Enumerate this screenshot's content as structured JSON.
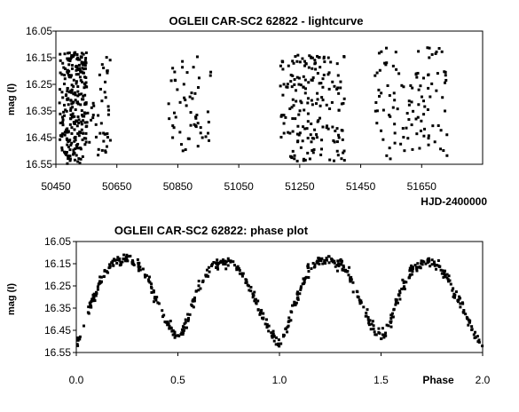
{
  "chart_data": [
    {
      "type": "scatter",
      "title": "OGLEII CAR-SC2 62822 - lightcurve",
      "xlabel": "HJD-2400000",
      "ylabel": "mag (I)",
      "xlim": [
        50450,
        51850
      ],
      "ylim": [
        16.55,
        16.05
      ],
      "y_inverted": true,
      "x_ticks": [
        "50450",
        "50650",
        "50850",
        "51050",
        "51250",
        "51450",
        "51650"
      ],
      "y_ticks": [
        "16.05",
        "16.15",
        "16.25",
        "16.35",
        "16.45",
        "16.55"
      ],
      "grid": false,
      "series": [
        {
          "marker_color": "#000000",
          "observing_seasons": [
            {
              "x_range": [
                50462,
                50550
              ],
              "y_range": [
                16.13,
                16.55
              ],
              "count": 260
            },
            {
              "x_range": [
                50550,
                50630
              ],
              "y_range": [
                16.14,
                16.52
              ],
              "count": 45
            },
            {
              "x_range": [
                50820,
                50965
              ],
              "y_range": [
                16.14,
                16.5
              ],
              "count": 55
            },
            {
              "x_range": [
                51185,
                51400
              ],
              "y_range": [
                16.14,
                16.54
              ],
              "count": 190
            },
            {
              "x_range": [
                51490,
                51735
              ],
              "y_range": [
                16.11,
                16.53
              ],
              "count": 110
            }
          ]
        }
      ]
    },
    {
      "type": "scatter",
      "title": "OGLEII CAR-SC2 62822: phase plot",
      "xlabel": "Phase",
      "ylabel": "mag (I)",
      "xlim": [
        0.0,
        2.0
      ],
      "ylim": [
        16.55,
        16.05
      ],
      "y_inverted": true,
      "x_ticks": [
        "0.0",
        "0.5",
        "1.0",
        "1.5",
        "2.0"
      ],
      "y_ticks": [
        "16.05",
        "16.15",
        "16.25",
        "16.35",
        "16.45",
        "16.55"
      ],
      "grid": false,
      "series": [
        {
          "marker_color": "#000000",
          "light_curve_nodes": {
            "phase": [
              0.0,
              0.03,
              0.08,
              0.14,
              0.2,
              0.25,
              0.3,
              0.35,
              0.4,
              0.45,
              0.48,
              0.5,
              0.52,
              0.55,
              0.6,
              0.66,
              0.72,
              0.77,
              0.82,
              0.87,
              0.92,
              0.96,
              1.0
            ],
            "mag": [
              16.52,
              16.45,
              16.31,
              16.19,
              16.14,
              16.13,
              16.15,
              16.22,
              16.32,
              16.42,
              16.46,
              16.47,
              16.46,
              16.4,
              16.26,
              16.17,
              16.14,
              16.15,
              16.2,
              16.29,
              16.39,
              16.47,
              16.52
            ]
          },
          "scatter_mag": 0.012,
          "points_per_cycle": 300
        }
      ]
    }
  ]
}
